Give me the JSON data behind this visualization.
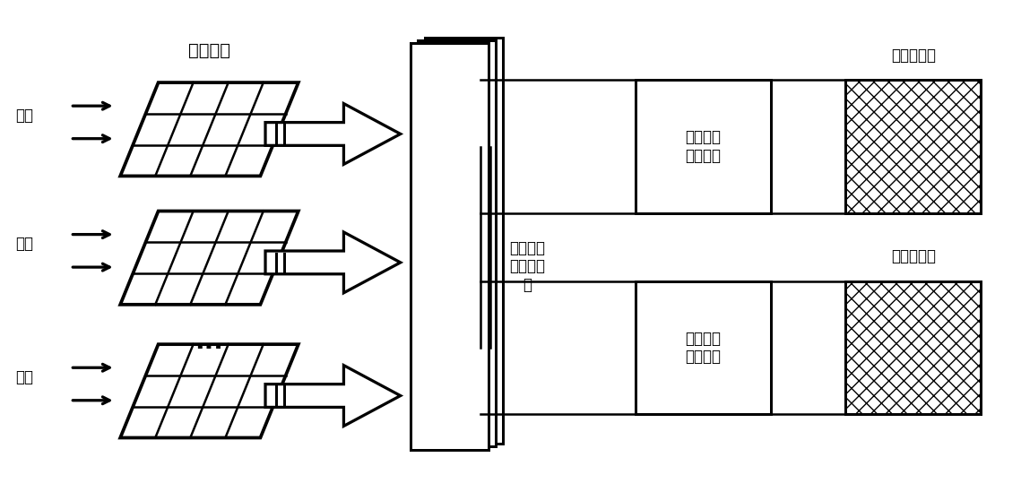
{
  "bg_color": "#ffffff",
  "line_color": "#000000",
  "figsize": [
    11.39,
    5.49
  ],
  "dpi": 100,
  "pv_label": "光伏阵列",
  "guang_label": "光照",
  "converter_label": "光伏直流\n升压变流\n器",
  "dc_interface_label": "直流站级\n接口电路",
  "ac_interface_label": "交流站级\n接口电路",
  "dc_grid_label": "直流配电网",
  "ac_grid_label": "交流配电网",
  "pv_rows": 3,
  "pv_cols": 4,
  "pv_skew": 0.04,
  "arrow_outline_color": "#000000",
  "arrow_fill_color": "#ffffff"
}
